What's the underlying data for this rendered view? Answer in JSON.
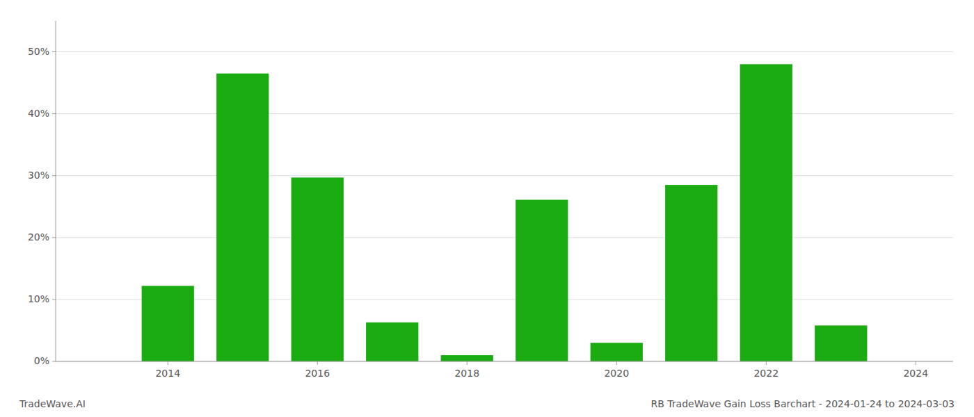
{
  "chart_data": {
    "type": "bar",
    "title": "RB TradeWave Gain Loss Barchart - 2024-01-24 to 2024-03-03",
    "annotations": [
      "TradeWave.AI"
    ],
    "x": [
      2014,
      2015,
      2016,
      2017,
      2018,
      2019,
      2020,
      2021,
      2022,
      2023
    ],
    "values": [
      0.122,
      0.465,
      0.297,
      0.063,
      0.01,
      0.261,
      0.03,
      0.285,
      0.48,
      0.058
    ],
    "color": "#1aab10",
    "xlim": [
      2012.5,
      2024.5
    ],
    "xticks": [
      2014,
      2016,
      2018,
      2020,
      2022,
      2024
    ],
    "ylim": [
      0,
      0.55
    ],
    "yticks": [
      {
        "value": 0.0,
        "label": "0%"
      },
      {
        "value": 0.1,
        "label": "10%"
      },
      {
        "value": 0.2,
        "label": "20%"
      },
      {
        "value": 0.3,
        "label": "30%"
      },
      {
        "value": 0.4,
        "label": "40%"
      },
      {
        "value": 0.5,
        "label": "50%"
      }
    ],
    "grid": true
  }
}
